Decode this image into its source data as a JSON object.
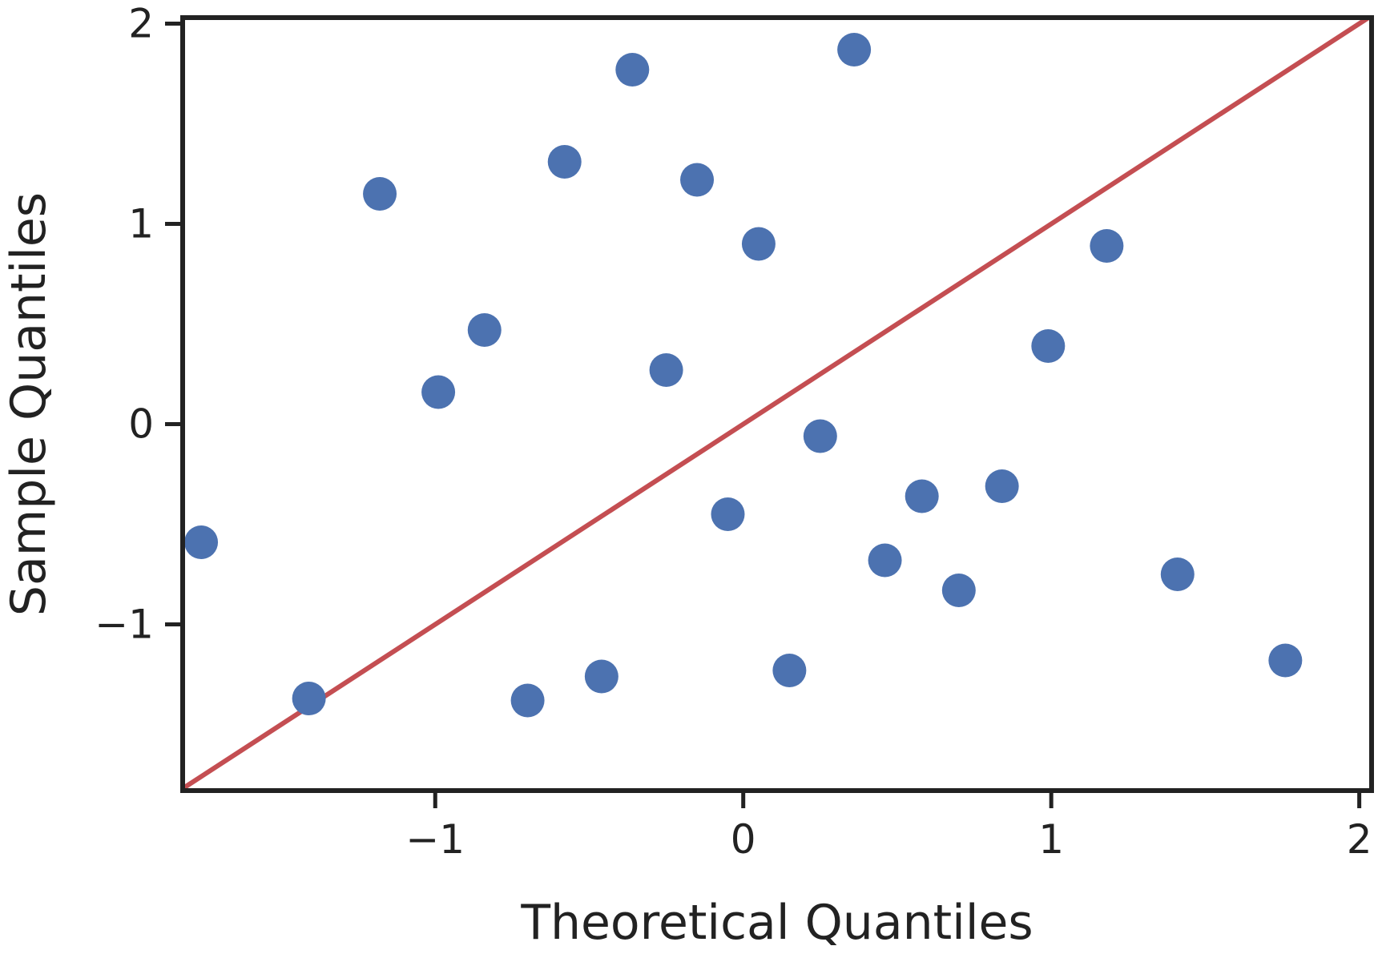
{
  "chart_data": {
    "type": "scatter",
    "title": "",
    "xlabel": "Theoretical Quantiles",
    "ylabel": "Sample Quantiles",
    "xlim": [
      -1.82,
      2.04
    ],
    "ylim": [
      -1.83,
      2.03
    ],
    "x_ticks": [
      -1,
      0,
      1,
      2
    ],
    "y_ticks": [
      -1,
      0,
      1,
      2
    ],
    "x_tick_labels": [
      "−1",
      "0",
      "1",
      "2"
    ],
    "y_tick_labels": [
      "−1",
      "0",
      "1",
      "2"
    ],
    "grid": false,
    "legend": "none",
    "point_color": "#4c72b0",
    "line_color": "#c44e52",
    "reference_line": {
      "slope": 1,
      "intercept": 0
    },
    "series": [
      {
        "points": [
          {
            "x": -1.76,
            "y": -0.59
          },
          {
            "x": -1.41,
            "y": -1.37
          },
          {
            "x": -1.18,
            "y": 1.15
          },
          {
            "x": -0.99,
            "y": 0.16
          },
          {
            "x": -0.84,
            "y": 0.47
          },
          {
            "x": -0.7,
            "y": -1.38
          },
          {
            "x": -0.58,
            "y": 1.31
          },
          {
            "x": -0.46,
            "y": -1.26
          },
          {
            "x": -0.36,
            "y": 1.77
          },
          {
            "x": -0.25,
            "y": 0.27
          },
          {
            "x": -0.15,
            "y": 1.22
          },
          {
            "x": -0.05,
            "y": -0.45
          },
          {
            "x": 0.05,
            "y": 0.9
          },
          {
            "x": 0.15,
            "y": -1.23
          },
          {
            "x": 0.25,
            "y": -0.06
          },
          {
            "x": 0.36,
            "y": 1.87
          },
          {
            "x": 0.46,
            "y": -0.68
          },
          {
            "x": 0.58,
            "y": -0.36
          },
          {
            "x": 0.7,
            "y": -0.83
          },
          {
            "x": 0.84,
            "y": -0.31
          },
          {
            "x": 0.99,
            "y": 0.39
          },
          {
            "x": 1.18,
            "y": 0.89
          },
          {
            "x": 1.41,
            "y": -0.75
          },
          {
            "x": 1.76,
            "y": -1.18
          }
        ]
      }
    ]
  }
}
